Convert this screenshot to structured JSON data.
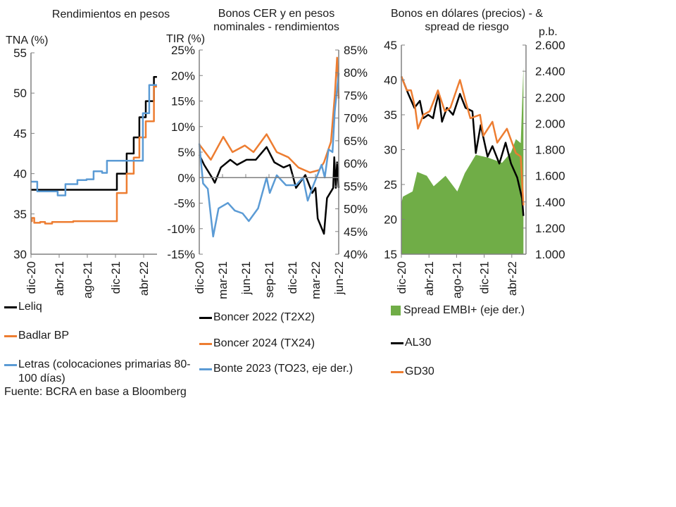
{
  "colors": {
    "black": "#000000",
    "orange": "#ED7D31",
    "blue": "#5B9BD5",
    "green": "#70AD47",
    "axis": "#808080"
  },
  "source": "Fuente: BCRA en base a Bloomberg",
  "chart_data": [
    {
      "type": "line",
      "title": "Rendimientos en pesos",
      "ylabel": "TNA (%)",
      "ylim": [
        30,
        55
      ],
      "yticks": [
        "30",
        "35",
        "40",
        "45",
        "50",
        "55"
      ],
      "ytick_values": [
        30,
        35,
        40,
        45,
        50,
        55
      ],
      "xticks": [
        "dic-20",
        "abr-21",
        "ago-21",
        "dic-21",
        "abr-22"
      ],
      "xtick_dates": [
        "2020-12-01",
        "2021-04-01",
        "2021-08-01",
        "2021-12-01",
        "2022-04-01"
      ],
      "legend": "bottom",
      "series": [
        {
          "name": "Leliq",
          "color": "#000000",
          "step": true,
          "axis": "left",
          "points": [
            [
              "2020-12-01",
              38
            ],
            [
              "2021-12-07",
              40
            ],
            [
              "2022-01-19",
              42.5
            ],
            [
              "2022-02-19",
              44.5
            ],
            [
              "2022-03-13",
              47
            ],
            [
              "2022-04-10",
              49
            ],
            [
              "2022-05-15",
              52
            ],
            [
              "2022-05-28",
              52
            ]
          ]
        },
        {
          "name": "Badlar BP",
          "color": "#ED7D31",
          "step": true,
          "axis": "left",
          "points": [
            [
              "2020-12-01",
              34.1
            ],
            [
              "2020-12-05",
              34.5
            ],
            [
              "2020-12-15",
              33.9
            ],
            [
              "2021-01-10",
              34.0
            ],
            [
              "2021-02-01",
              33.8
            ],
            [
              "2021-03-01",
              34.0
            ],
            [
              "2021-06-01",
              34.1
            ],
            [
              "2021-09-01",
              34.1
            ],
            [
              "2021-12-07",
              37.6
            ],
            [
              "2022-01-19",
              40
            ],
            [
              "2022-02-19",
              42
            ],
            [
              "2022-03-13",
              44.5
            ],
            [
              "2022-04-10",
              46.5
            ],
            [
              "2022-05-15",
              50.8
            ],
            [
              "2022-05-28",
              50.8
            ]
          ]
        },
        {
          "name": "Letras (colocaciones primarias 80-100 días)",
          "color": "#5B9BD5",
          "step": true,
          "axis": "left",
          "points": [
            [
              "2020-12-01",
              39
            ],
            [
              "2020-12-28",
              37.8
            ],
            [
              "2021-03-25",
              37.3
            ],
            [
              "2021-04-28",
              38.7
            ],
            [
              "2021-06-19",
              39.2
            ],
            [
              "2021-07-28",
              39.3
            ],
            [
              "2021-08-28",
              40.3
            ],
            [
              "2021-10-04",
              40.1
            ],
            [
              "2021-10-25",
              41.6
            ],
            [
              "2022-03-28",
              47.5
            ],
            [
              "2022-04-25",
              51
            ],
            [
              "2022-05-28",
              51
            ]
          ]
        }
      ]
    },
    {
      "type": "line",
      "title": "Bonos CER y en pesos nominales - rendimientos",
      "ylabel": "TIR (%)",
      "ylim": [
        -15,
        25
      ],
      "y2lim": [
        40,
        85
      ],
      "yticks": [
        "-15%",
        "-10%",
        "-5%",
        "0%",
        "5%",
        "10%",
        "15%",
        "20%",
        "25%"
      ],
      "ytick_values": [
        -15,
        -10,
        -5,
        0,
        5,
        10,
        15,
        20,
        25
      ],
      "y2ticks": [
        "40%",
        "45%",
        "50%",
        "55%",
        "60%",
        "65%",
        "70%",
        "75%",
        "80%",
        "85%"
      ],
      "y2tick_values": [
        40,
        45,
        50,
        55,
        60,
        65,
        70,
        75,
        80,
        85
      ],
      "xticks": [
        "dic-20",
        "mar-21",
        "jun-21",
        "sep-21",
        "dic-21",
        "mar-22",
        "jun-22"
      ],
      "xtick_dates": [
        "2020-12-01",
        "2021-03-01",
        "2021-06-01",
        "2021-09-01",
        "2021-12-01",
        "2022-03-01",
        "2022-06-01"
      ],
      "legend": "bottom",
      "series": [
        {
          "name": "Boncer 2022 (T2X2)",
          "color": "#000000",
          "axis": "left",
          "points": [
            [
              "2020-12-01",
              4.5
            ],
            [
              "2020-12-20",
              2.5
            ],
            [
              "2021-01-21",
              0
            ],
            [
              "2021-02-01",
              -1
            ],
            [
              "2021-02-25",
              2
            ],
            [
              "2021-04-01",
              3.5
            ],
            [
              "2021-04-28",
              2.5
            ],
            [
              "2021-06-04",
              3.5
            ],
            [
              "2021-07-10",
              3.5
            ],
            [
              "2021-08-22",
              6
            ],
            [
              "2021-09-22",
              3
            ],
            [
              "2021-10-28",
              2
            ],
            [
              "2021-11-22",
              2.5
            ],
            [
              "2021-12-16",
              -2
            ],
            [
              "2022-01-22",
              0.5
            ],
            [
              "2022-02-19",
              -3
            ],
            [
              "2022-03-01",
              -2
            ],
            [
              "2022-03-10",
              -8
            ],
            [
              "2022-04-04",
              -11
            ],
            [
              "2022-04-16",
              -4
            ],
            [
              "2022-05-10",
              -2
            ],
            [
              "2022-05-14",
              4
            ],
            [
              "2022-05-20",
              -2
            ],
            [
              "2022-05-25",
              3
            ],
            [
              "2022-06-01",
              -2
            ]
          ]
        },
        {
          "name": "Boncer 2024 (TX24)",
          "color": "#ED7D31",
          "axis": "left",
          "points": [
            [
              "2020-12-01",
              6.5
            ],
            [
              "2021-01-16",
              3.5
            ],
            [
              "2021-03-04",
              8
            ],
            [
              "2021-04-10",
              5
            ],
            [
              "2021-05-28",
              6.3
            ],
            [
              "2021-07-01",
              5
            ],
            [
              "2021-08-22",
              8.5
            ],
            [
              "2021-10-01",
              5
            ],
            [
              "2021-11-16",
              4
            ],
            [
              "2021-12-25",
              2
            ],
            [
              "2022-02-10",
              1
            ],
            [
              "2022-03-16",
              1.5
            ],
            [
              "2022-04-04",
              3
            ],
            [
              "2022-05-01",
              7
            ],
            [
              "2022-05-16",
              16
            ],
            [
              "2022-05-25",
              23.5
            ],
            [
              "2022-06-01",
              15.5
            ]
          ]
        },
        {
          "name": "Bonte 2023 (TO23, eje der.)",
          "color": "#5B9BD5",
          "axis": "right",
          "points": [
            [
              "2020-12-01",
              64.4
            ],
            [
              "2020-12-16",
              55.6
            ],
            [
              "2021-01-04",
              54.4
            ],
            [
              "2021-01-25",
              43.9
            ],
            [
              "2021-02-16",
              50.1
            ],
            [
              "2021-03-22",
              51.3
            ],
            [
              "2021-04-19",
              49.6
            ],
            [
              "2021-05-19",
              49.0
            ],
            [
              "2021-06-13",
              47.3
            ],
            [
              "2021-07-19",
              50.1
            ],
            [
              "2021-08-22",
              56.9
            ],
            [
              "2021-09-04",
              53.5
            ],
            [
              "2021-10-01",
              57.4
            ],
            [
              "2021-11-07",
              55.2
            ],
            [
              "2021-12-16",
              55.2
            ],
            [
              "2022-01-13",
              56.9
            ],
            [
              "2022-02-01",
              51.8
            ],
            [
              "2022-02-19",
              54.6
            ],
            [
              "2022-03-25",
              59.7
            ],
            [
              "2022-04-07",
              56.9
            ],
            [
              "2022-04-22",
              63.1
            ],
            [
              "2022-05-07",
              62.5
            ],
            [
              "2022-05-16",
              71.5
            ],
            [
              "2022-06-01",
              79.9
            ]
          ]
        }
      ]
    },
    {
      "type": "line",
      "title": "Bonos en dólares (precios) - & spread de riesgo",
      "y2label": "p.b.",
      "ylim": [
        15,
        45
      ],
      "y2lim": [
        1000,
        2600
      ],
      "yticks": [
        "15",
        "20",
        "25",
        "30",
        "35",
        "40",
        "45"
      ],
      "ytick_values": [
        15,
        20,
        25,
        30,
        35,
        40,
        45
      ],
      "y2ticks": [
        "1.000",
        "1.200",
        "1.400",
        "1.600",
        "1.800",
        "2.000",
        "2.200",
        "2.400",
        "2.600"
      ],
      "y2tick_values": [
        1000,
        1200,
        1400,
        1600,
        1800,
        2000,
        2200,
        2400,
        2600
      ],
      "xticks": [
        "dic-20",
        "abr-21",
        "ago-21",
        "dic-21",
        "abr-22"
      ],
      "xtick_dates": [
        "2020-12-01",
        "2021-04-01",
        "2021-08-01",
        "2021-12-01",
        "2022-04-01"
      ],
      "legend": "bottom",
      "series": [
        {
          "name": "Spread EMBI+ (eje der.)",
          "color": "#70AD47",
          "kind": "area",
          "axis": "right",
          "points": [
            [
              "2020-12-01",
              1390
            ],
            [
              "2020-12-08",
              1440
            ],
            [
              "2021-01-20",
              1480
            ],
            [
              "2021-02-10",
              1630
            ],
            [
              "2021-03-22",
              1600
            ],
            [
              "2021-04-22",
              1520
            ],
            [
              "2021-06-13",
              1600
            ],
            [
              "2021-08-04",
              1480
            ],
            [
              "2021-09-07",
              1620
            ],
            [
              "2021-10-25",
              1760
            ],
            [
              "2021-12-16",
              1740
            ],
            [
              "2022-02-19",
              1700
            ],
            [
              "2022-03-28",
              1780
            ],
            [
              "2022-04-19",
              1880
            ],
            [
              "2022-05-10",
              1850
            ],
            [
              "2022-05-22",
              2430
            ]
          ]
        },
        {
          "name": "AL30",
          "color": "#000000",
          "axis": "left",
          "points": [
            [
              "2020-12-01",
              40.5
            ],
            [
              "2021-01-01",
              38
            ],
            [
              "2021-01-28",
              36
            ],
            [
              "2021-02-22",
              37
            ],
            [
              "2021-03-07",
              34.5
            ],
            [
              "2021-03-28",
              35
            ],
            [
              "2021-04-19",
              34.5
            ],
            [
              "2021-04-28",
              36
            ],
            [
              "2021-05-13",
              38
            ],
            [
              "2021-05-28",
              34
            ],
            [
              "2021-06-19",
              36
            ],
            [
              "2021-07-16",
              35
            ],
            [
              "2021-08-16",
              38
            ],
            [
              "2021-09-10",
              36
            ],
            [
              "2021-10-10",
              35.5
            ],
            [
              "2021-10-25",
              29.5
            ],
            [
              "2021-11-16",
              33.5
            ],
            [
              "2021-12-16",
              29
            ],
            [
              "2022-01-07",
              30.5
            ],
            [
              "2022-02-07",
              28
            ],
            [
              "2022-03-04",
              31
            ],
            [
              "2022-03-28",
              28
            ],
            [
              "2022-04-25",
              26
            ],
            [
              "2022-05-16",
              23
            ],
            [
              "2022-05-22",
              20.5
            ]
          ]
        },
        {
          "name": "GD30",
          "color": "#ED7D31",
          "axis": "left",
          "points": [
            [
              "2020-12-01",
              40.5
            ],
            [
              "2020-12-25",
              38.5
            ],
            [
              "2021-01-13",
              38.5
            ],
            [
              "2021-02-01",
              36
            ],
            [
              "2021-02-13",
              33
            ],
            [
              "2021-03-07",
              35
            ],
            [
              "2021-04-04",
              35.5
            ],
            [
              "2021-05-10",
              38.5
            ],
            [
              "2021-06-10",
              35.5
            ],
            [
              "2021-07-04",
              36
            ],
            [
              "2021-08-16",
              40
            ],
            [
              "2021-09-10",
              37
            ],
            [
              "2021-10-01",
              34.5
            ],
            [
              "2021-11-13",
              35
            ],
            [
              "2021-11-28",
              32
            ],
            [
              "2022-01-07",
              34
            ],
            [
              "2022-01-28",
              31
            ],
            [
              "2022-03-10",
              33
            ],
            [
              "2022-04-19",
              29.5
            ],
            [
              "2022-05-10",
              29
            ],
            [
              "2022-05-22",
              22
            ]
          ]
        }
      ]
    }
  ]
}
